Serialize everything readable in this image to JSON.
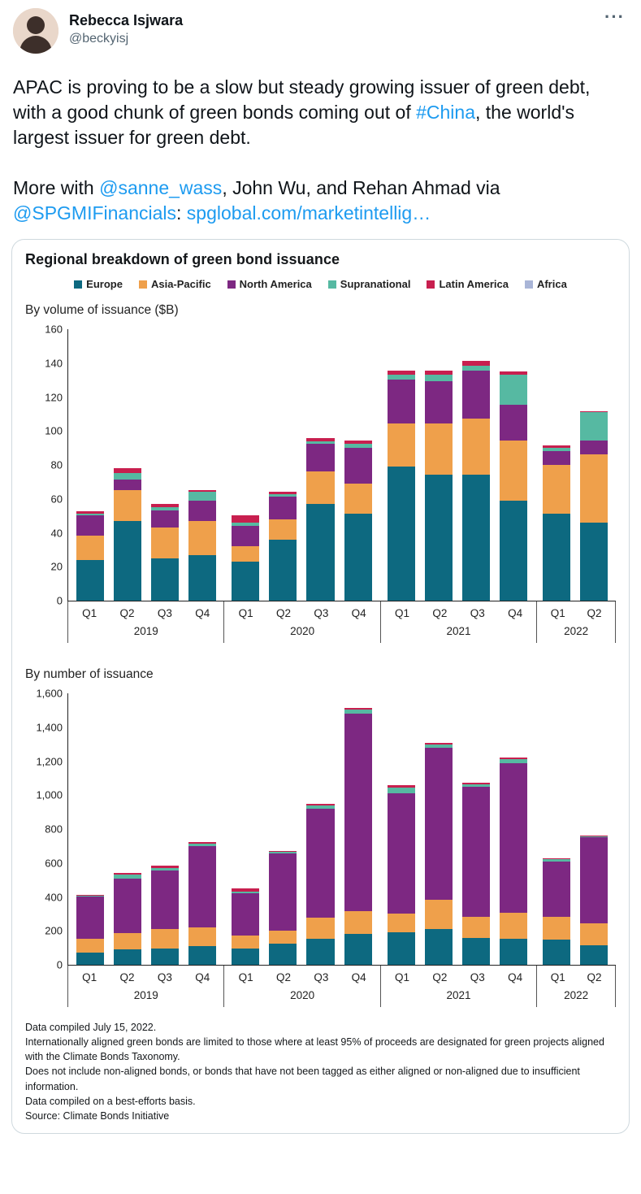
{
  "tweet": {
    "author_name": "Rebecca Isjwara",
    "author_handle": "@beckyisj",
    "more_button": "···",
    "body": [
      {
        "segments": [
          {
            "type": "plain",
            "text": "APAC is proving to be a slow but steady growing issuer of green debt, with a good chunk of green bonds coming out of "
          },
          {
            "type": "link",
            "name": "hashtag-china",
            "text": "#China"
          },
          {
            "type": "plain",
            "text": ", the world's largest issuer for green debt."
          }
        ]
      },
      {
        "segments": [
          {
            "type": "plain",
            "text": "More with "
          },
          {
            "type": "link",
            "name": "mention-sanne-wass",
            "text": "@sanne_wass"
          },
          {
            "type": "plain",
            "text": ", John Wu, and Rehan Ahmad via "
          },
          {
            "type": "link",
            "name": "mention-spgmifinancials",
            "text": "@SPGMIFinancials"
          },
          {
            "type": "plain",
            "text": ": "
          },
          {
            "type": "link",
            "name": "article-link",
            "text": "spglobal.com/marketintellig…"
          }
        ]
      }
    ]
  },
  "chart_card": {
    "title": "Regional breakdown of green bond issuance",
    "legend": [
      {
        "label": "Europe",
        "color": "#0d6980"
      },
      {
        "label": "Asia-Pacific",
        "color": "#efa04b"
      },
      {
        "label": "North America",
        "color": "#7d2882"
      },
      {
        "label": "Supranational",
        "color": "#56b9a2"
      },
      {
        "label": "Latin America",
        "color": "#c81f4f"
      },
      {
        "label": "Africa",
        "color": "#a9b5d7"
      }
    ],
    "footnotes": [
      "Data compiled July 15, 2022.",
      "Internationally aligned green bonds are limited to those where at least 95% of proceeds are designated for green projects aligned with the Climate Bonds Taxonomy.",
      "Does not include non-aligned bonds, or bonds that have not been tagged as either aligned or non-aligned due to insufficient information.",
      "Data compiled on a best-efforts basis.",
      "Source: Climate Bonds Initiative"
    ]
  },
  "chart_data": [
    {
      "type": "bar",
      "stacked": true,
      "title": "By volume of issuance ($B)",
      "categories": [
        "Q1",
        "Q2",
        "Q3",
        "Q4",
        "Q1",
        "Q2",
        "Q3",
        "Q4",
        "Q1",
        "Q2",
        "Q3",
        "Q4",
        "Q1",
        "Q2"
      ],
      "year_groups": [
        {
          "label": "2019",
          "span": 4
        },
        {
          "label": "2020",
          "span": 4
        },
        {
          "label": "2021",
          "span": 4
        },
        {
          "label": "2022",
          "span": 2
        }
      ],
      "ylim": [
        0,
        160
      ],
      "ytick_step": 20,
      "grid": false,
      "legend_position": "top",
      "series": [
        {
          "name": "Europe",
          "values": [
            24,
            47,
            25,
            27,
            23,
            36,
            57,
            51,
            79,
            74,
            74,
            59,
            51,
            46
          ]
        },
        {
          "name": "Asia-Pacific",
          "values": [
            14,
            18,
            18,
            20,
            9,
            12,
            19,
            18,
            25,
            30,
            33,
            35,
            29,
            40
          ]
        },
        {
          "name": "North America",
          "values": [
            12,
            6,
            10,
            12,
            12,
            13,
            16,
            21,
            26,
            25,
            28,
            21,
            8,
            8
          ]
        },
        {
          "name": "Supranational",
          "values": [
            1,
            4,
            2,
            5,
            2,
            1.5,
            1.5,
            2,
            3,
            4,
            3,
            18,
            2,
            17
          ]
        },
        {
          "name": "Latin America",
          "values": [
            1.5,
            3,
            2,
            1,
            4,
            1.5,
            2,
            2,
            2,
            2,
            3,
            1.5,
            1,
            0.5
          ]
        },
        {
          "name": "Africa",
          "values": [
            0,
            0,
            0,
            0,
            0,
            0,
            0,
            0,
            0,
            0,
            0,
            0,
            0,
            0
          ]
        }
      ]
    },
    {
      "type": "bar",
      "stacked": true,
      "title": "By number of issuance",
      "categories": [
        "Q1",
        "Q2",
        "Q3",
        "Q4",
        "Q1",
        "Q2",
        "Q3",
        "Q4",
        "Q1",
        "Q2",
        "Q3",
        "Q4",
        "Q1",
        "Q2"
      ],
      "year_groups": [
        {
          "label": "2019",
          "span": 4
        },
        {
          "label": "2020",
          "span": 4
        },
        {
          "label": "2021",
          "span": 4
        },
        {
          "label": "2022",
          "span": 2
        }
      ],
      "ylim": [
        0,
        1600
      ],
      "ytick_step": 200,
      "grid": false,
      "legend_position": "top",
      "series": [
        {
          "name": "Europe",
          "values": [
            70,
            90,
            95,
            110,
            95,
            125,
            155,
            180,
            190,
            210,
            160,
            155,
            150,
            115
          ]
        },
        {
          "name": "Asia-Pacific",
          "values": [
            85,
            95,
            115,
            110,
            75,
            75,
            120,
            135,
            110,
            170,
            120,
            150,
            130,
            130
          ]
        },
        {
          "name": "North America",
          "values": [
            245,
            320,
            345,
            480,
            250,
            455,
            640,
            1160,
            710,
            895,
            765,
            880,
            325,
            505
          ]
        },
        {
          "name": "Supranational",
          "values": [
            5,
            25,
            15,
            12,
            10,
            10,
            20,
            25,
            30,
            20,
            15,
            25,
            15,
            5
          ]
        },
        {
          "name": "Latin America",
          "values": [
            5,
            12,
            12,
            10,
            20,
            5,
            10,
            10,
            15,
            10,
            10,
            10,
            5,
            3
          ]
        },
        {
          "name": "Africa",
          "values": [
            0,
            0,
            0,
            0,
            0,
            0,
            0,
            0,
            0,
            0,
            0,
            0,
            0,
            0
          ]
        }
      ]
    }
  ]
}
